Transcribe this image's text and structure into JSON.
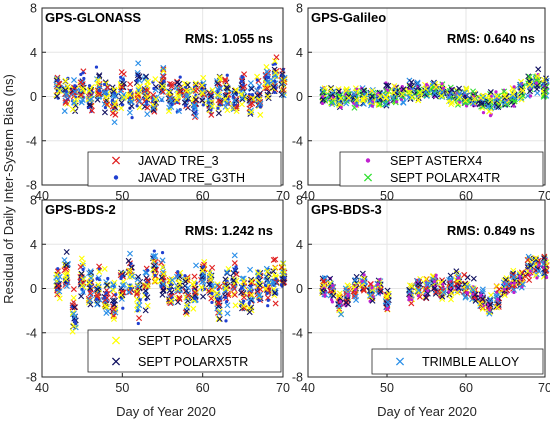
{
  "figure": {
    "ylabel": "Residual of Daily Inter-System Bias (ns)",
    "xlabel": "Day of Year 2020"
  },
  "chart_data": [
    {
      "type": "scatter",
      "title": "GPS-GLONASS",
      "annotation": "RMS: 1.055 ns",
      "xlim": [
        40,
        70
      ],
      "ylim": [
        -8,
        8
      ],
      "xticks": [
        "40",
        "50",
        "60",
        "70"
      ],
      "yticks": [
        "8",
        "4",
        "0",
        "-4",
        "-8"
      ],
      "grid": true,
      "legend_position": "bottom-right",
      "legend": [
        "JAVAD TRE_3",
        "JAVAD TRE_G3TH"
      ],
      "residual_envelope": {
        "day": [
          42,
          43,
          44,
          45,
          46,
          47,
          48,
          49,
          50,
          51,
          52,
          53,
          54,
          55,
          56,
          57,
          58,
          59,
          60,
          61,
          62,
          63,
          64,
          65,
          66,
          67,
          68,
          69,
          70
        ],
        "center": [
          0.7,
          0.4,
          0.1,
          0.8,
          -0.1,
          0.6,
          0.0,
          -0.2,
          0.6,
          -0.2,
          0.8,
          0.3,
          -0.3,
          0.9,
          0.1,
          0.2,
          0.0,
          -0.4,
          0.6,
          -0.4,
          0.3,
          0.2,
          -0.6,
          0.3,
          -0.5,
          -0.2,
          0.9,
          1.8,
          1.2
        ],
        "spread": [
          1.4,
          1.6,
          1.5,
          1.6,
          1.3,
          1.6,
          1.4,
          1.7,
          1.5,
          1.6,
          1.8,
          1.6,
          1.7,
          1.8,
          1.5,
          1.6,
          1.6,
          1.7,
          1.4,
          1.6,
          1.6,
          1.7,
          1.6,
          1.7,
          1.6,
          1.7,
          1.8,
          1.8,
          1.4
        ]
      }
    },
    {
      "type": "scatter",
      "title": "GPS-Galileo",
      "annotation": "RMS: 0.640 ns",
      "xlim": [
        40,
        70
      ],
      "ylim": [
        -8,
        8
      ],
      "xticks": [
        "40",
        "50",
        "60",
        "70"
      ],
      "yticks": [
        "8",
        "4",
        "0",
        "-4",
        "-8"
      ],
      "grid": true,
      "legend_position": "bottom-right",
      "legend": [
        "SEPT ASTERX4",
        "SEPT POLARX4TR"
      ],
      "residual_envelope": {
        "day": [
          42,
          43,
          44,
          45,
          46,
          47,
          48,
          49,
          50,
          51,
          52,
          53,
          54,
          55,
          56,
          57,
          58,
          59,
          60,
          61,
          62,
          63,
          64,
          65,
          66,
          67,
          68,
          69,
          70
        ],
        "center": [
          0.1,
          0.0,
          -0.2,
          0.0,
          -0.1,
          0.1,
          -0.1,
          0.0,
          0.2,
          0.1,
          0.3,
          0.4,
          0.5,
          0.6,
          0.6,
          0.4,
          0.2,
          0.0,
          -0.1,
          -0.2,
          -0.4,
          -0.6,
          -0.5,
          -0.2,
          0.1,
          0.6,
          1.0,
          1.3,
          0.8
        ],
        "spread": [
          0.8,
          0.9,
          0.9,
          0.8,
          0.9,
          0.9,
          0.9,
          0.8,
          0.9,
          0.9,
          0.9,
          0.9,
          0.9,
          0.8,
          0.9,
          0.9,
          0.9,
          0.9,
          0.9,
          0.9,
          0.9,
          0.9,
          1.0,
          0.9,
          0.9,
          0.9,
          0.9,
          0.9,
          0.8
        ]
      }
    },
    {
      "type": "scatter",
      "title": "GPS-BDS-2",
      "annotation": "RMS: 1.242 ns",
      "xlim": [
        40,
        70
      ],
      "ylim": [
        -8,
        8
      ],
      "xticks": [
        "40",
        "50",
        "60",
        "70"
      ],
      "yticks": [
        "8",
        "4",
        "0",
        "-4",
        "-8"
      ],
      "grid": true,
      "legend_position": "bottom-right",
      "legend": [
        "SEPT POLARX5",
        "SEPT POLARX5TR"
      ],
      "residual_envelope": {
        "day": [
          42,
          43,
          44,
          45,
          46,
          47,
          48,
          49,
          50,
          51,
          52,
          53,
          54,
          55,
          56,
          57,
          58,
          59,
          60,
          61,
          62,
          63,
          64,
          65,
          66,
          67,
          68,
          69,
          70
        ],
        "center": [
          0.5,
          1.2,
          -2.2,
          0.6,
          0.2,
          0.3,
          -0.6,
          -1.0,
          0.1,
          1.0,
          -0.6,
          0.2,
          1.8,
          0.6,
          -0.4,
          0.2,
          -0.8,
          0.0,
          1.2,
          0.3,
          -1.2,
          -0.4,
          0.8,
          -0.2,
          -0.5,
          0.3,
          0.6,
          0.4,
          1.2
        ],
        "spread": [
          1.8,
          2.2,
          2.1,
          2.0,
          1.8,
          1.9,
          2.0,
          2.1,
          1.9,
          2.1,
          2.0,
          1.9,
          2.2,
          2.0,
          1.9,
          1.9,
          2.0,
          1.8,
          2.0,
          1.9,
          2.1,
          2.0,
          2.0,
          1.9,
          1.9,
          2.0,
          2.1,
          2.0,
          2.0
        ]
      }
    },
    {
      "type": "scatter",
      "title": "GPS-BDS-3",
      "annotation": "RMS: 0.849 ns",
      "xlim": [
        40,
        70
      ],
      "ylim": [
        -8,
        8
      ],
      "xticks": [
        "40",
        "50",
        "60",
        "70"
      ],
      "yticks": [
        "8",
        "4",
        "0",
        "-4",
        "-8"
      ],
      "grid": true,
      "legend_position": "bottom-right",
      "legend": [
        "TRIMBLE ALLOY"
      ],
      "residual_envelope": {
        "day": [
          42,
          43,
          44,
          45,
          46,
          47,
          48,
          49,
          50,
          53,
          54,
          55,
          56,
          57,
          58,
          59,
          60,
          61,
          62,
          63,
          64,
          65,
          66,
          67,
          68,
          69,
          70
        ],
        "center": [
          0.2,
          0.0,
          -1.5,
          -0.6,
          -0.1,
          0.5,
          -0.3,
          0.1,
          -1.0,
          -0.3,
          0.2,
          0.0,
          0.4,
          -0.2,
          0.1,
          0.5,
          0.0,
          -0.4,
          -1.0,
          -1.5,
          -0.8,
          0.2,
          0.6,
          0.9,
          1.8,
          2.1,
          1.9
        ],
        "spread": [
          1.0,
          1.0,
          1.1,
          1.0,
          1.0,
          1.2,
          1.0,
          1.0,
          1.1,
          1.0,
          1.0,
          1.0,
          1.1,
          1.0,
          1.0,
          1.1,
          1.0,
          1.0,
          1.1,
          1.2,
          1.1,
          1.0,
          1.0,
          1.1,
          1.2,
          1.2,
          1.0
        ]
      }
    }
  ],
  "colors": {
    "blue_dot": "#1f3fd0",
    "red_cross": "#e02020",
    "magenta_dot": "#c020d0",
    "green_cross": "#30e030",
    "yellow_cross": "#ffff00",
    "navy_cross": "#101060",
    "light_blue_cross": "#2a8fe8",
    "grid": "#e6e6e6",
    "axis": "#262626"
  }
}
